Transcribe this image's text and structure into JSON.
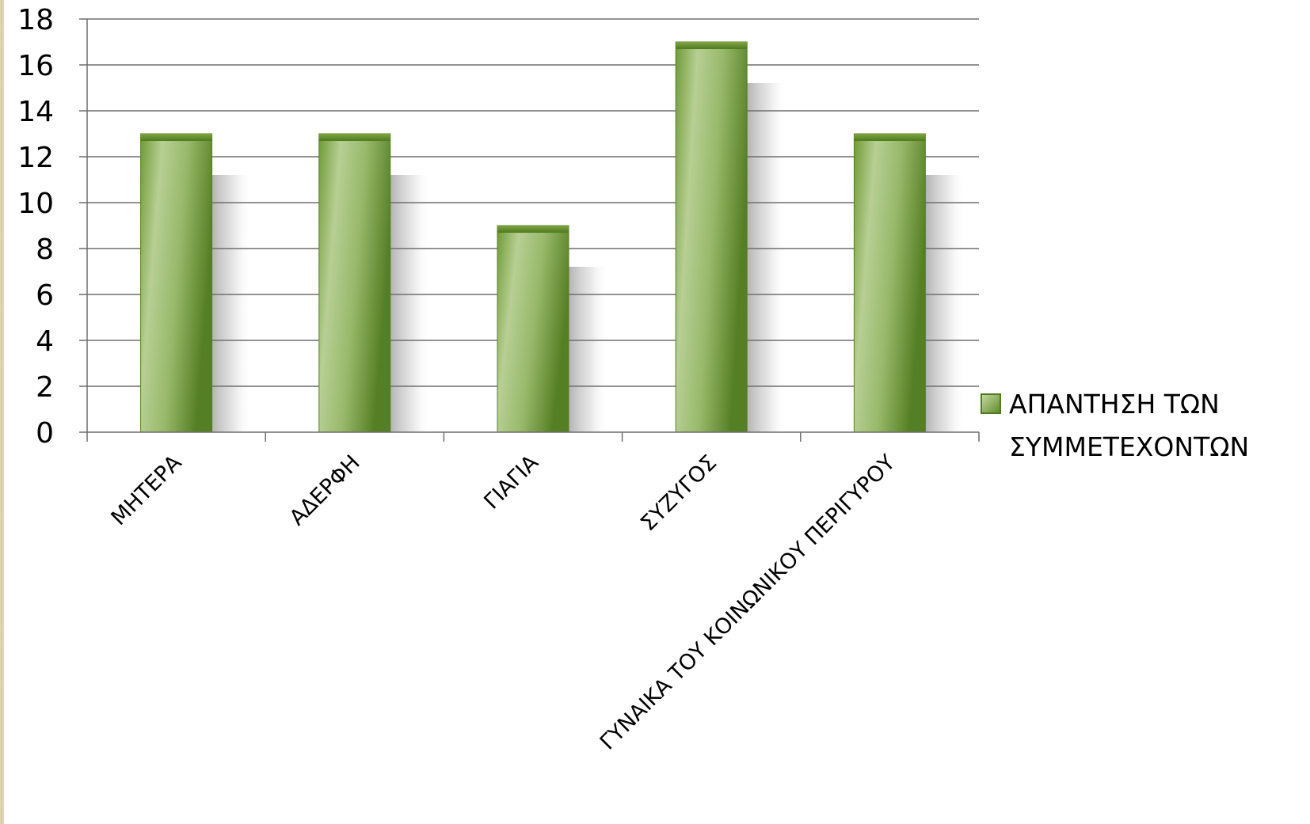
{
  "chart_data": {
    "type": "bar",
    "categories": [
      "ΜΗΤΕΡΑ",
      "ΑΔΕΡΦΗ",
      "ΓΙΑΓΙΑ",
      "ΣΥΖΥΓΟΣ",
      "ΓΥΝΑΙΚΑ ΤΟΥ ΚΟΙΝΩΝΙΚΟΥ ΠΕΡΙΓΥΡΟΥ"
    ],
    "series": [
      {
        "name": "ΑΠΑΝΤΗΣΗ ΤΩΝ ΣΥΜΜΕΤΕΧΟΝΤΩΝ",
        "values": [
          13,
          13,
          9,
          17,
          13
        ]
      }
    ],
    "ylim": [
      0,
      18
    ],
    "yticks": [
      0,
      2,
      4,
      6,
      8,
      10,
      12,
      14,
      16,
      18
    ],
    "grid": true,
    "legend": "right",
    "title": "",
    "xlabel": "",
    "ylabel": "",
    "colors": {
      "bar_dark": "#5e8a2a",
      "bar_light": "#b3cc8e",
      "grid": "#6e6e6e"
    }
  },
  "legend": {
    "line1": "ΑΠΑΝΤΗΣΗ ΤΩΝ",
    "line2": "ΣΥΜΜΕΤΕΧΟΝΤΩΝ"
  }
}
